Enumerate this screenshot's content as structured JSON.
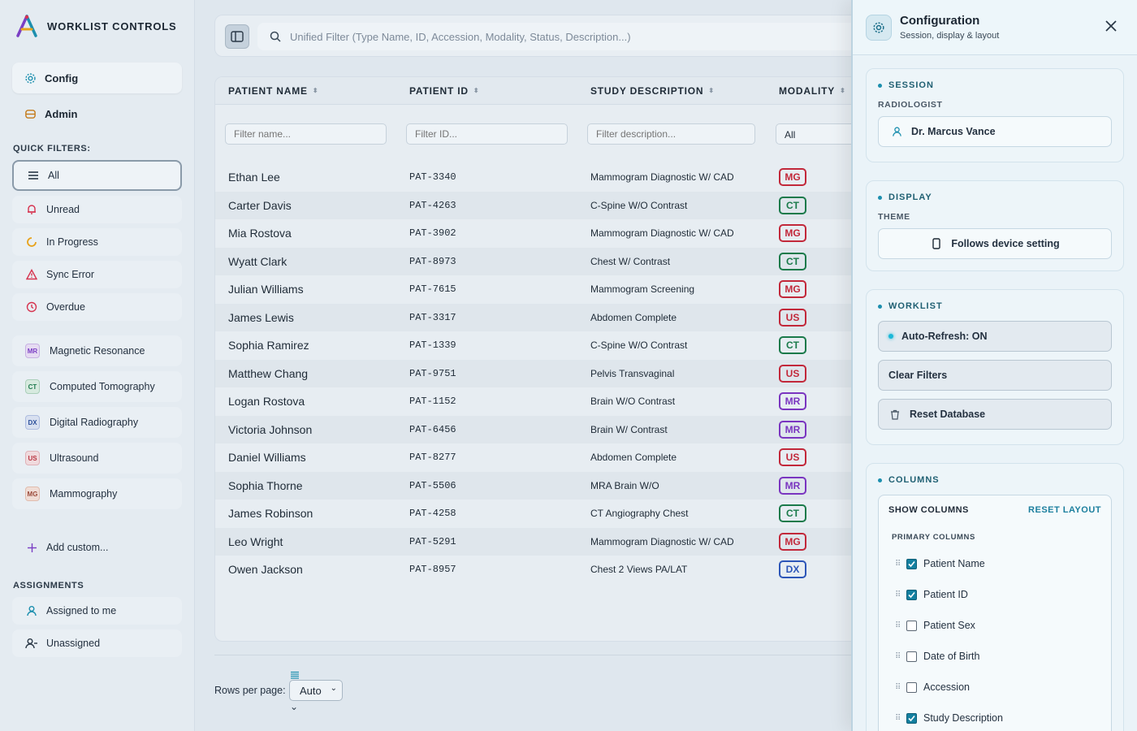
{
  "sidebar": {
    "brand": "WORKLIST CONTROLS",
    "nav": [
      {
        "label": "Config",
        "icon": "gear-icon",
        "active": true
      },
      {
        "label": "Admin",
        "icon": "database-icon",
        "active": false
      }
    ],
    "quick_filters_label": "QUICK FILTERS:",
    "quick_filters": [
      {
        "label": "All",
        "icon": "list-icon",
        "color": "#2b3947"
      },
      {
        "label": "Unread",
        "icon": "bell-icon",
        "color": "#d6334f"
      },
      {
        "label": "In Progress",
        "icon": "progress-icon",
        "color": "#e8a21a"
      },
      {
        "label": "Sync Error",
        "icon": "warning-icon",
        "color": "#d6334f"
      },
      {
        "label": "Overdue",
        "icon": "clock-icon",
        "color": "#d6334f"
      }
    ],
    "modalities": [
      {
        "code": "MR",
        "label": "Magnetic Resonance",
        "color": "#7b3fc4",
        "bg": "#e6dbf2"
      },
      {
        "code": "CT",
        "label": "Computed Tomography",
        "color": "#1e7a4f",
        "bg": "#d7eadf"
      },
      {
        "code": "DX",
        "label": "Digital Radiography",
        "color": "#2b4f9a",
        "bg": "#d8e0f0"
      },
      {
        "code": "US",
        "label": "Ultrasound",
        "color": "#b8333f",
        "bg": "#f0dadd"
      },
      {
        "code": "MG",
        "label": "Mammography",
        "color": "#9a4a3a",
        "bg": "#f0ddd6"
      }
    ],
    "add_custom": "Add custom...",
    "assignments_label": "ASSIGNMENTS",
    "assignments": [
      {
        "label": "Assigned to me",
        "icon": "user-icon"
      },
      {
        "label": "Unassigned",
        "icon": "user-minus-icon"
      }
    ]
  },
  "search": {
    "placeholder": "Unified Filter (Type Name, ID, Accession, Modality, Status, Description...)"
  },
  "table": {
    "headers": [
      "PATIENT NAME",
      "PATIENT ID",
      "STUDY DESCRIPTION",
      "MODALITY"
    ],
    "filters": {
      "name_placeholder": "Filter name...",
      "id_placeholder": "Filter ID...",
      "desc_placeholder": "Filter description...",
      "modality_value": "All"
    },
    "rows": [
      {
        "name": "Ethan Lee",
        "id": "PAT-3340",
        "desc": "Mammogram Diagnostic W/ CAD",
        "mod": "MG"
      },
      {
        "name": "Carter Davis",
        "id": "PAT-4263",
        "desc": "C-Spine W/O Contrast",
        "mod": "CT"
      },
      {
        "name": "Mia Rostova",
        "id": "PAT-3902",
        "desc": "Mammogram Diagnostic W/ CAD",
        "mod": "MG"
      },
      {
        "name": "Wyatt Clark",
        "id": "PAT-8973",
        "desc": "Chest W/ Contrast",
        "mod": "CT"
      },
      {
        "name": "Julian Williams",
        "id": "PAT-7615",
        "desc": "Mammogram Screening",
        "mod": "MG"
      },
      {
        "name": "James Lewis",
        "id": "PAT-3317",
        "desc": "Abdomen Complete",
        "mod": "US"
      },
      {
        "name": "Sophia Ramirez",
        "id": "PAT-1339",
        "desc": "C-Spine W/O Contrast",
        "mod": "CT"
      },
      {
        "name": "Matthew Chang",
        "id": "PAT-9751",
        "desc": "Pelvis Transvaginal",
        "mod": "US"
      },
      {
        "name": "Logan Rostova",
        "id": "PAT-1152",
        "desc": "Brain W/O Contrast",
        "mod": "MR"
      },
      {
        "name": "Victoria Johnson",
        "id": "PAT-6456",
        "desc": "Brain W/ Contrast",
        "mod": "MR"
      },
      {
        "name": "Daniel Williams",
        "id": "PAT-8277",
        "desc": "Abdomen Complete",
        "mod": "US"
      },
      {
        "name": "Sophia Thorne",
        "id": "PAT-5506",
        "desc": "MRA Brain W/O",
        "mod": "MR"
      },
      {
        "name": "James Robinson",
        "id": "PAT-4258",
        "desc": "CT Angiography Chest",
        "mod": "CT"
      },
      {
        "name": "Leo Wright",
        "id": "PAT-5291",
        "desc": "Mammogram Diagnostic W/ CAD",
        "mod": "MG"
      },
      {
        "name": "Owen Jackson",
        "id": "PAT-8957",
        "desc": "Chest 2 Views PA/LAT",
        "mod": "DX"
      }
    ],
    "modality_colors": {
      "MG": "#c2283a",
      "CT": "#1a7a4a",
      "US": "#c2283a",
      "MR": "#7a35c0",
      "DX": "#2d56b8"
    }
  },
  "pager": {
    "rows_label": "Rows per page:",
    "rows_value": "Auto"
  },
  "config": {
    "title": "Configuration",
    "subtitle": "Session, display & layout",
    "session": {
      "title": "SESSION",
      "radiologist_label": "RADIOLOGIST",
      "radiologist": "Dr. Marcus Vance"
    },
    "display": {
      "title": "DISPLAY",
      "theme_label": "THEME",
      "theme": "Follows device setting"
    },
    "worklist": {
      "title": "WORKLIST",
      "auto_refresh": "Auto-Refresh: ON",
      "clear_filters": "Clear Filters",
      "reset_db": "Reset Database"
    },
    "columns": {
      "title": "COLUMNS",
      "show_columns": "SHOW COLUMNS",
      "reset_layout": "RESET LAYOUT",
      "primary_label": "PRIMARY COLUMNS",
      "items": [
        {
          "label": "Patient Name",
          "checked": true
        },
        {
          "label": "Patient ID",
          "checked": true
        },
        {
          "label": "Patient Sex",
          "checked": false
        },
        {
          "label": "Date of Birth",
          "checked": false
        },
        {
          "label": "Accession",
          "checked": false
        },
        {
          "label": "Study Description",
          "checked": true
        }
      ]
    }
  }
}
